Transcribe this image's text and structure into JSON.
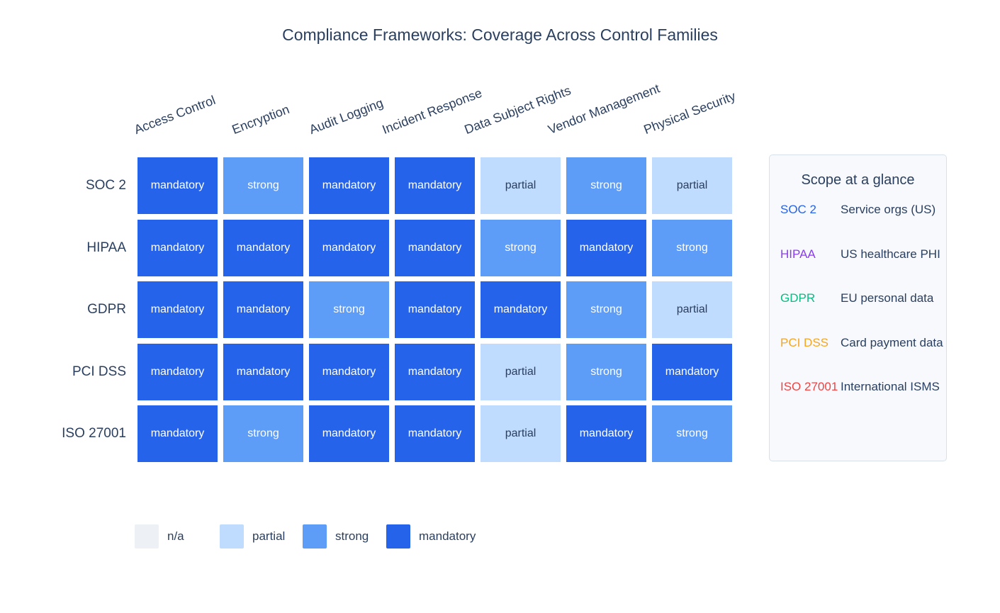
{
  "title": "Compliance Frameworks: Coverage Across Control Families",
  "chart_data": {
    "type": "heatmap",
    "title": "Compliance Frameworks: Coverage Across Control Families",
    "categories": [
      "Access Control",
      "Encryption",
      "Audit Logging",
      "Incident Response",
      "Data Subject Rights",
      "Vendor Management",
      "Physical Security"
    ],
    "rows": [
      "SOC 2",
      "HIPAA",
      "GDPR",
      "PCI DSS",
      "ISO 27001"
    ],
    "values": [
      [
        "mandatory",
        "strong",
        "mandatory",
        "mandatory",
        "partial",
        "strong",
        "partial"
      ],
      [
        "mandatory",
        "mandatory",
        "mandatory",
        "mandatory",
        "strong",
        "mandatory",
        "strong"
      ],
      [
        "mandatory",
        "mandatory",
        "strong",
        "mandatory",
        "mandatory",
        "strong",
        "partial"
      ],
      [
        "mandatory",
        "mandatory",
        "mandatory",
        "mandatory",
        "partial",
        "strong",
        "mandatory"
      ],
      [
        "mandatory",
        "strong",
        "mandatory",
        "mandatory",
        "partial",
        "mandatory",
        "strong"
      ]
    ],
    "levels": [
      {
        "label": "n/a",
        "color": "#edf1f6",
        "text_color": "#2a3f5f"
      },
      {
        "label": "partial",
        "color": "#bfdbfe",
        "text_color": "#2a3f5f"
      },
      {
        "label": "strong",
        "color": "#5d9cf7",
        "text_color": "#ffffff"
      },
      {
        "label": "mandatory",
        "color": "#2563eb",
        "text_color": "#ffffff"
      }
    ],
    "legend_position": "bottom",
    "grid": false
  },
  "side_panel": {
    "title": "Scope at a glance",
    "entries": [
      {
        "name": "SOC 2",
        "color": "#2563eb",
        "description": "Service orgs (US)"
      },
      {
        "name": "HIPAA",
        "color": "#8b3df0",
        "description": "US healthcare PHI"
      },
      {
        "name": "GDPR",
        "color": "#10b981",
        "description": "EU personal data"
      },
      {
        "name": "PCI DSS",
        "color": "#f5a623",
        "description": "Card payment data"
      },
      {
        "name": "ISO 27001",
        "color": "#ef4444",
        "description": "International ISMS"
      }
    ]
  }
}
